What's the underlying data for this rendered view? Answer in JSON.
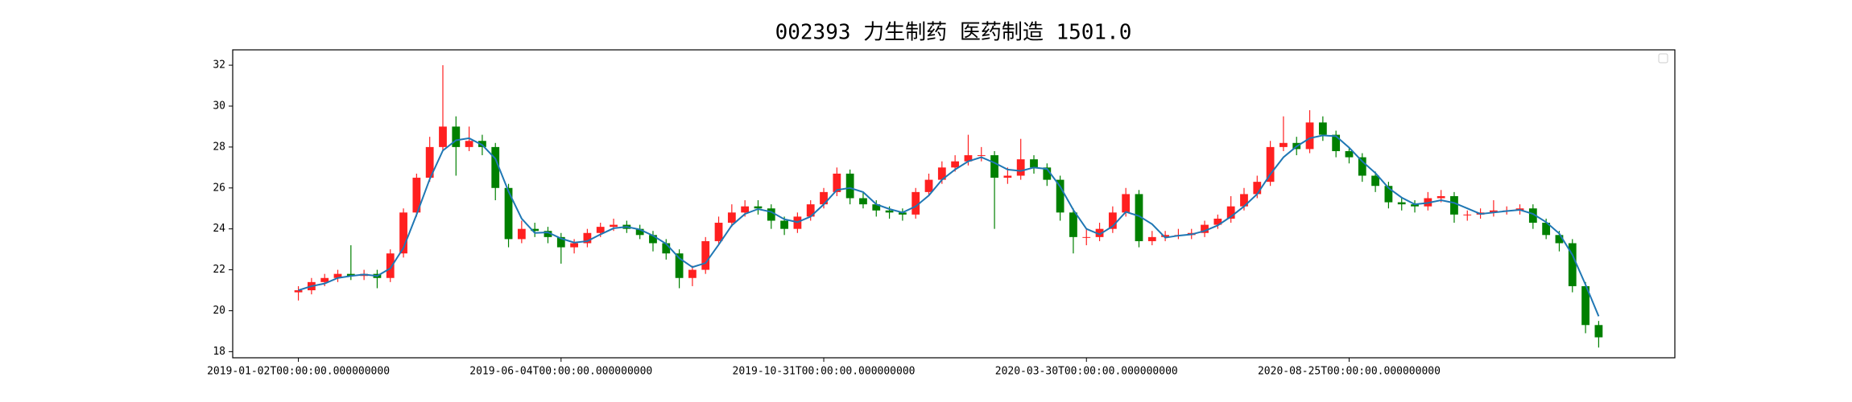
{
  "chart_data": {
    "type": "candlestick",
    "title": "002393 力生制药 医药制造 1501.0",
    "x": [
      0,
      5,
      10,
      15,
      20,
      25,
      30,
      35,
      40,
      45,
      50,
      55,
      60,
      65,
      70,
      75,
      80,
      85,
      90,
      95,
      100,
      105,
      110,
      115,
      120,
      125,
      130,
      135,
      140,
      145,
      150,
      155,
      160,
      165,
      170,
      175,
      180,
      185,
      190,
      195,
      200,
      205,
      210,
      215,
      220,
      225,
      230,
      235,
      240,
      245,
      250,
      255,
      260,
      265,
      270,
      275,
      280,
      285,
      290,
      295,
      300,
      305,
      310,
      315,
      320,
      325,
      330,
      335,
      340,
      345,
      350,
      355,
      360,
      365,
      370,
      375,
      380,
      385,
      390,
      395,
      400,
      405,
      410,
      415,
      420,
      425,
      430,
      435,
      440,
      445,
      450,
      455,
      460,
      465,
      470,
      475,
      480,
      485,
      490,
      495
    ],
    "open": [
      20.9,
      21.0,
      21.4,
      21.6,
      21.8,
      21.7,
      21.8,
      21.6,
      22.8,
      24.8,
      26.5,
      28.0,
      29.0,
      28.0,
      28.3,
      28.0,
      26.0,
      23.5,
      24.0,
      23.9,
      23.6,
      23.1,
      23.3,
      23.8,
      24.1,
      24.2,
      24.0,
      23.7,
      23.3,
      22.8,
      21.6,
      22.0,
      23.4,
      24.3,
      24.8,
      25.1,
      25.0,
      24.4,
      24.0,
      24.6,
      25.2,
      25.8,
      26.7,
      25.5,
      25.2,
      24.9,
      24.8,
      24.7,
      25.8,
      26.4,
      27.0,
      27.3,
      27.6,
      27.6,
      26.5,
      26.6,
      27.4,
      27.0,
      26.4,
      24.8,
      23.6,
      23.6,
      24.0,
      24.8,
      25.7,
      23.4,
      23.6,
      23.7,
      23.7,
      23.8,
      24.2,
      24.5,
      25.1,
      25.7,
      26.3,
      28.0,
      28.2,
      27.9,
      29.2,
      28.6,
      27.8,
      27.5,
      26.6,
      26.1,
      25.3,
      25.2,
      25.1,
      25.5,
      25.6,
      24.7,
      24.7,
      24.8,
      24.9,
      24.9,
      25.0,
      24.3,
      23.7,
      23.3,
      21.2,
      19.3
    ],
    "high": [
      21.2,
      21.6,
      21.8,
      22.0,
      23.2,
      22.0,
      22.0,
      23.0,
      25.0,
      26.7,
      28.5,
      32.0,
      29.5,
      29.0,
      28.6,
      28.2,
      26.2,
      24.4,
      24.3,
      24.1,
      23.8,
      23.5,
      24.0,
      24.3,
      24.5,
      24.4,
      24.2,
      23.9,
      23.5,
      23.0,
      22.2,
      23.6,
      24.6,
      25.2,
      25.4,
      25.4,
      25.2,
      24.6,
      24.8,
      25.4,
      26.0,
      27.0,
      26.9,
      25.8,
      25.4,
      25.1,
      25.0,
      26.0,
      26.7,
      27.3,
      27.6,
      28.6,
      28.0,
      27.8,
      27.0,
      28.4,
      27.6,
      27.2,
      26.6,
      25.0,
      24.0,
      24.3,
      25.1,
      26.0,
      25.9,
      23.9,
      23.9,
      24.0,
      24.0,
      24.4,
      24.7,
      25.6,
      26.0,
      26.6,
      28.3,
      29.5,
      28.5,
      29.8,
      29.5,
      28.8,
      28.0,
      27.7,
      26.8,
      26.3,
      25.5,
      25.4,
      25.8,
      25.9,
      25.8,
      24.9,
      25.0,
      25.4,
      25.1,
      25.2,
      25.2,
      24.5,
      23.9,
      23.5,
      21.4,
      19.5
    ],
    "low": [
      20.5,
      20.8,
      21.2,
      21.4,
      21.5,
      21.5,
      21.1,
      21.4,
      22.6,
      24.6,
      26.3,
      27.8,
      26.6,
      27.8,
      27.6,
      25.4,
      23.1,
      23.3,
      23.6,
      23.3,
      22.3,
      22.8,
      23.1,
      23.6,
      23.9,
      23.8,
      23.5,
      22.9,
      22.5,
      21.1,
      21.2,
      21.8,
      23.2,
      24.1,
      24.6,
      24.7,
      24.0,
      23.7,
      23.8,
      24.4,
      25.0,
      25.6,
      25.2,
      25.0,
      24.6,
      24.5,
      24.4,
      24.5,
      25.6,
      26.2,
      26.8,
      27.1,
      27.3,
      24.0,
      26.2,
      26.4,
      26.7,
      26.1,
      24.4,
      22.8,
      23.2,
      23.4,
      23.8,
      24.6,
      23.1,
      23.2,
      23.4,
      23.5,
      23.5,
      23.6,
      24.0,
      24.3,
      24.9,
      25.5,
      26.1,
      27.8,
      27.6,
      27.7,
      28.3,
      27.5,
      27.2,
      26.3,
      25.8,
      25.0,
      24.9,
      24.8,
      24.9,
      25.3,
      24.3,
      24.4,
      24.5,
      24.6,
      24.7,
      24.7,
      24.0,
      23.5,
      22.9,
      20.9,
      18.9,
      18.2
    ],
    "close": [
      21.0,
      21.4,
      21.6,
      21.8,
      21.7,
      21.8,
      21.6,
      22.8,
      24.8,
      26.5,
      28.0,
      29.0,
      28.0,
      28.3,
      28.0,
      26.0,
      23.5,
      24.0,
      23.9,
      23.6,
      23.1,
      23.3,
      23.8,
      24.1,
      24.2,
      24.0,
      23.7,
      23.3,
      22.8,
      21.6,
      22.0,
      23.4,
      24.3,
      24.8,
      25.1,
      25.0,
      24.4,
      24.0,
      24.6,
      25.2,
      25.8,
      26.7,
      25.5,
      25.2,
      24.9,
      24.8,
      24.7,
      25.8,
      26.4,
      27.0,
      27.3,
      27.6,
      27.6,
      26.5,
      26.6,
      27.4,
      27.0,
      26.4,
      24.8,
      23.6,
      23.6,
      24.0,
      24.8,
      25.7,
      23.4,
      23.6,
      23.7,
      23.7,
      23.8,
      24.2,
      24.5,
      25.1,
      25.7,
      26.3,
      28.0,
      28.2,
      27.9,
      29.2,
      28.6,
      27.8,
      27.5,
      26.6,
      26.1,
      25.3,
      25.2,
      25.1,
      25.5,
      25.6,
      24.7,
      24.7,
      24.8,
      24.9,
      24.9,
      25.0,
      24.3,
      23.7,
      23.3,
      21.2,
      19.3,
      18.7
    ],
    "up_color": "#ff2020",
    "down_color": "#008000",
    "ma": {
      "color": "#1f77b4",
      "values": [
        21.0,
        21.2,
        21.33,
        21.6,
        21.7,
        21.77,
        21.7,
        22.07,
        23.07,
        24.7,
        26.43,
        27.83,
        28.33,
        28.43,
        28.1,
        27.43,
        25.83,
        24.5,
        23.8,
        23.83,
        23.53,
        23.33,
        23.4,
        23.73,
        24.03,
        24.1,
        23.97,
        23.67,
        23.27,
        22.57,
        22.13,
        22.33,
        23.23,
        24.17,
        24.73,
        24.97,
        24.83,
        24.47,
        24.33,
        24.6,
        25.2,
        25.9,
        26.0,
        25.8,
        25.2,
        24.97,
        24.8,
        25.1,
        25.63,
        26.4,
        26.9,
        27.3,
        27.5,
        27.23,
        26.9,
        26.83,
        27.0,
        26.93,
        26.07,
        24.93,
        24.0,
        23.73,
        24.13,
        24.83,
        24.63,
        24.23,
        23.57,
        23.67,
        23.73,
        23.9,
        24.17,
        24.6,
        25.1,
        25.7,
        26.67,
        27.5,
        28.03,
        28.43,
        28.57,
        28.53,
        27.97,
        27.3,
        26.73,
        26.0,
        25.53,
        25.2,
        25.27,
        25.4,
        25.27,
        25.0,
        24.73,
        24.8,
        24.87,
        24.93,
        24.73,
        24.33,
        23.77,
        22.73,
        21.27,
        19.73
      ]
    },
    "xlim": [
      -25,
      524
    ],
    "ylim": [
      17.7,
      32.75
    ],
    "xticks": [
      {
        "value": 0,
        "label": "2019-01-02T00:00:00.000000000"
      },
      {
        "value": 100,
        "label": "2019-06-04T00:00:00.000000000"
      },
      {
        "value": 200,
        "label": "2019-10-31T00:00:00.000000000"
      },
      {
        "value": 300,
        "label": "2020-03-30T00:00:00.000000000"
      },
      {
        "value": 400,
        "label": "2020-08-25T00:00:00.000000000"
      }
    ],
    "yticks": [
      18,
      20,
      22,
      24,
      26,
      28,
      30,
      32
    ]
  }
}
